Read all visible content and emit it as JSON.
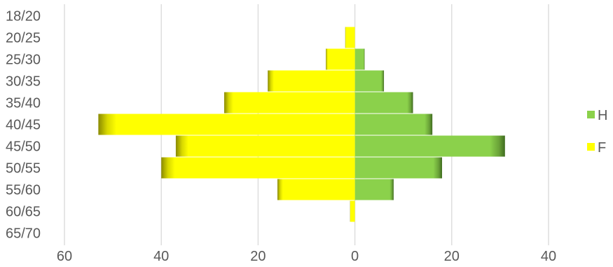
{
  "chart_data": {
    "type": "bar",
    "orientation": "horizontal",
    "stacked": true,
    "categories": [
      "18/20",
      "20/25",
      "25/30",
      "30/35",
      "35/40",
      "40/45",
      "45/50",
      "50/55",
      "55/60",
      "60/65",
      "65/70"
    ],
    "series": [
      {
        "name": "H",
        "color": "#8bd14b",
        "values": [
          0,
          0,
          2,
          6,
          12,
          16,
          31,
          18,
          8,
          0,
          0
        ]
      },
      {
        "name": "F",
        "color": "#ffff00",
        "values": [
          0,
          -2,
          -6,
          -18,
          -27,
          -53,
          -37,
          -40,
          -16,
          -1,
          0
        ]
      }
    ],
    "xlim": [
      -60,
      40
    ],
    "x_ticks": [
      -60,
      -40,
      -20,
      0,
      20,
      40
    ],
    "x_tick_labels": [
      "60",
      "40",
      "20",
      "0",
      "20",
      "40"
    ],
    "title": "",
    "xlabel": "",
    "ylabel": "",
    "grid": "vertical",
    "legend_position": "right"
  }
}
